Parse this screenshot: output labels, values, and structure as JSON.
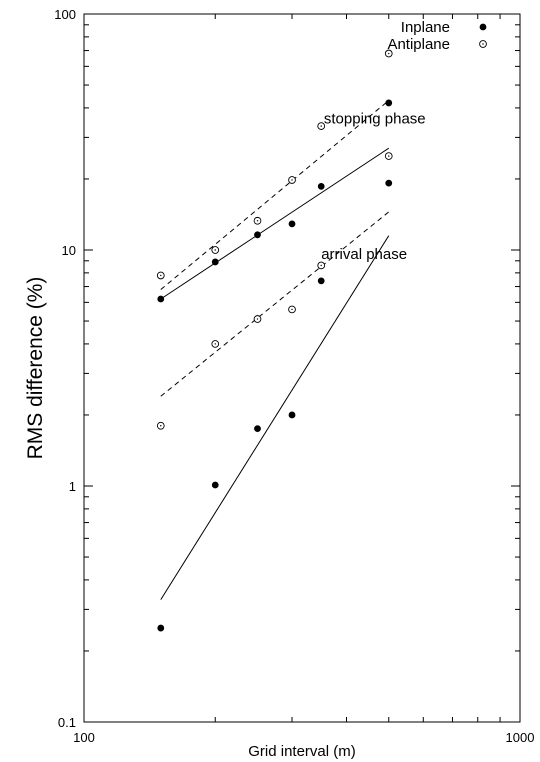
{
  "chart_data": {
    "type": "scatter",
    "xlabel": "Grid interval (m)",
    "ylabel": "RMS difference (%)",
    "x_scale": "log",
    "y_scale": "log",
    "xlim": [
      100,
      1000
    ],
    "ylim": [
      0.1,
      100
    ],
    "x_ticks": [
      "100",
      "1000"
    ],
    "y_ticks": [
      "0.1",
      "1",
      "10",
      "100"
    ],
    "grid": false,
    "legend_position": "top-right",
    "series": [
      {
        "name": "Inplane",
        "marker": "filled-circle",
        "points": [
          {
            "x": 150,
            "y": 6.2
          },
          {
            "x": 200,
            "y": 8.9
          },
          {
            "x": 250,
            "y": 11.6
          },
          {
            "x": 300,
            "y": 12.9
          },
          {
            "x": 350,
            "y": 18.6
          },
          {
            "x": 500,
            "y": 42.0
          },
          {
            "x": 500,
            "y": 19.2
          },
          {
            "x": 350,
            "y": 7.4
          },
          {
            "x": 300,
            "y": 2.0
          },
          {
            "x": 250,
            "y": 1.75
          },
          {
            "x": 200,
            "y": 1.01
          },
          {
            "x": 150,
            "y": 0.25
          }
        ]
      },
      {
        "name": "Antiplane",
        "marker": "open-circle",
        "points": [
          {
            "x": 150,
            "y": 7.8
          },
          {
            "x": 200,
            "y": 10.0
          },
          {
            "x": 250,
            "y": 13.3
          },
          {
            "x": 300,
            "y": 19.8
          },
          {
            "x": 350,
            "y": 33.5
          },
          {
            "x": 500,
            "y": 68.0
          },
          {
            "x": 500,
            "y": 25.0
          },
          {
            "x": 350,
            "y": 8.6
          },
          {
            "x": 300,
            "y": 5.6
          },
          {
            "x": 250,
            "y": 5.1
          },
          {
            "x": 200,
            "y": 4.0
          },
          {
            "x": 150,
            "y": 1.8
          }
        ]
      }
    ],
    "fit_lines": [
      {
        "group": "stopping phase",
        "style": "solid",
        "from": {
          "x": 150,
          "y": 6.2
        },
        "to": {
          "x": 500,
          "y": 27.0
        }
      },
      {
        "group": "stopping phase",
        "style": "dashed",
        "from": {
          "x": 150,
          "y": 6.8
        },
        "to": {
          "x": 500,
          "y": 43.0
        }
      },
      {
        "group": "arrival phase",
        "style": "solid",
        "from": {
          "x": 150,
          "y": 0.33
        },
        "to": {
          "x": 500,
          "y": 11.5
        }
      },
      {
        "group": "arrival phase",
        "style": "dashed",
        "from": {
          "x": 150,
          "y": 2.4
        },
        "to": {
          "x": 500,
          "y": 14.5
        }
      }
    ],
    "annotations": [
      {
        "text": "stopping phase",
        "x": 355,
        "y": 36
      },
      {
        "text": "arrival phase",
        "x": 350,
        "y": 9.6
      }
    ]
  }
}
